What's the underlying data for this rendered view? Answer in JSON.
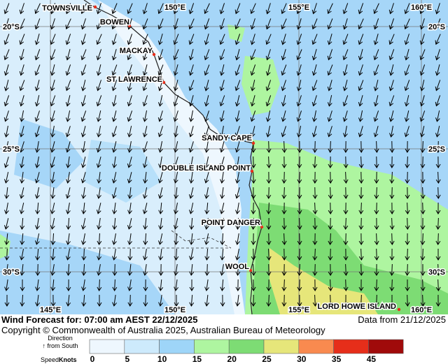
{
  "map": {
    "places": [
      "TOWNSVILLE",
      "BOWEN",
      "MACKAY",
      "ST LAWRENCE",
      "SANDY CAPE",
      "DOUBLE ISLAND POINT",
      "POINT DANGER",
      "WOOL",
      "LORD HOWE ISLAND"
    ],
    "lon_labels_top": [
      "150°E",
      "155°E",
      "160°E"
    ],
    "lon_labels_bottom": [
      "145°E",
      "150°E",
      "155°E",
      "160°E"
    ],
    "lat_labels": [
      "20°S",
      "25°S",
      "30°S"
    ]
  },
  "footer": {
    "title": "Wind Forecast for: 07:00 am AEST 22/12/2025",
    "data_from": "Data from 21/12/2025",
    "copyright": "Copyright © Commonwealth of Australia 2025, Australian Bureau of Meteorology"
  },
  "legend": {
    "direction_label": "Direction",
    "direction_note": "↑ from South",
    "speed_label": "Speed",
    "units": "Knots",
    "ticks": [
      0,
      5,
      10,
      15,
      20,
      25,
      30,
      35,
      45
    ],
    "colors": [
      "#eef7fe",
      "#cdeafc",
      "#9ed5f8",
      "#aef5a0",
      "#7ddc74",
      "#e6e67a",
      "#f98a4f",
      "#e62e1a",
      "#a00a0a"
    ]
  }
}
